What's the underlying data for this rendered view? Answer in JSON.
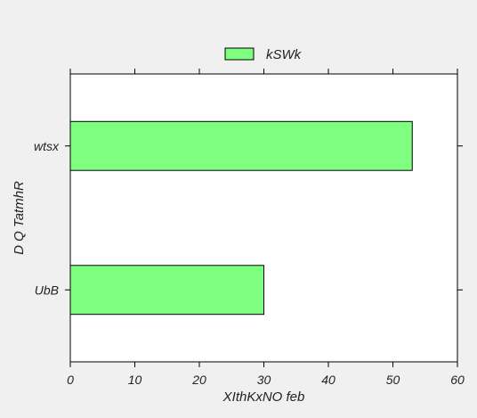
{
  "colors": {
    "background": "#f0f0f0",
    "plot_background": "#ffffff",
    "bar_fill": "#7fff7f",
    "bar_edge": "#000000"
  },
  "chart_data": {
    "type": "bar",
    "orientation": "horizontal",
    "categories": [
      "UbB",
      "wtsx"
    ],
    "series": [
      {
        "name": "kSWk",
        "values": [
          30,
          53
        ]
      }
    ],
    "xlabel": "XIthKxNO feb",
    "ylabel": "D Q TatmhR",
    "xlim": [
      0,
      60
    ],
    "xticks": [
      0,
      10,
      20,
      30,
      40,
      50,
      60
    ],
    "grid": false,
    "legend_position": "top-center"
  }
}
